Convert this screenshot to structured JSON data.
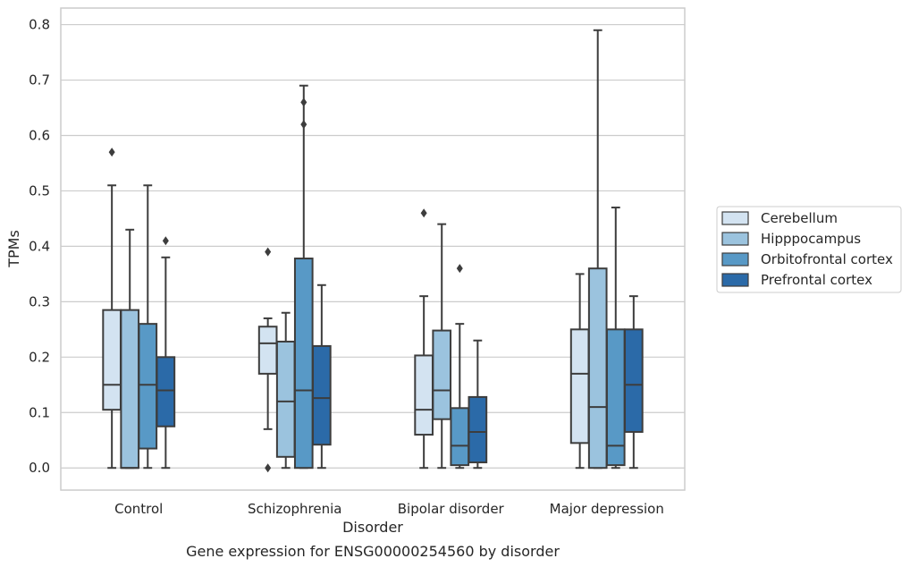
{
  "chart_data": {
    "type": "box",
    "title": "",
    "caption": "Gene expression for ENSG00000254560 by disorder",
    "xlabel": "Disorder",
    "ylabel": "TPMs",
    "ylim": [
      -0.04,
      0.83
    ],
    "yticks": [
      0.0,
      0.1,
      0.2,
      0.3,
      0.4,
      0.5,
      0.6,
      0.7,
      0.8
    ],
    "ytick_labels": [
      "0.0",
      "0.1",
      "0.2",
      "0.3",
      "0.4",
      "0.5",
      "0.6",
      "0.7",
      "0.8"
    ],
    "grid": true,
    "legend_position": "right",
    "categories": [
      "Control",
      "Schizophrenia",
      "Bipolar disorder",
      "Major depression"
    ],
    "series": [
      {
        "name": "Cerebellum",
        "color": "#d3e3f1",
        "boxes": [
          {
            "whislo": 0.0,
            "q1": 0.105,
            "median": 0.15,
            "q3": 0.285,
            "whishi": 0.51,
            "fliers": [
              0.57
            ]
          },
          {
            "whislo": 0.07,
            "q1": 0.17,
            "median": 0.225,
            "q3": 0.255,
            "whishi": 0.27,
            "fliers": [
              0.0,
              0.39
            ]
          },
          {
            "whislo": 0.0,
            "q1": 0.06,
            "median": 0.105,
            "q3": 0.203,
            "whishi": 0.31,
            "fliers": [
              0.46
            ]
          },
          {
            "whislo": 0.0,
            "q1": 0.045,
            "median": 0.17,
            "q3": 0.25,
            "whishi": 0.35,
            "fliers": []
          }
        ]
      },
      {
        "name": "Hipppocampus",
        "color": "#9bc3de",
        "boxes": [
          {
            "whislo": 0.0,
            "q1": 0.0,
            "median": 0.0,
            "q3": 0.285,
            "whishi": 0.43,
            "fliers": []
          },
          {
            "whislo": 0.0,
            "q1": 0.02,
            "median": 0.12,
            "q3": 0.228,
            "whishi": 0.28,
            "fliers": []
          },
          {
            "whislo": 0.0,
            "q1": 0.088,
            "median": 0.14,
            "q3": 0.248,
            "whishi": 0.44,
            "fliers": []
          },
          {
            "whislo": 0.0,
            "q1": 0.0,
            "median": 0.11,
            "q3": 0.36,
            "whishi": 0.79,
            "fliers": []
          }
        ]
      },
      {
        "name": "Orbitofrontal cortex",
        "color": "#5899c6",
        "boxes": [
          {
            "whislo": 0.0,
            "q1": 0.035,
            "median": 0.15,
            "q3": 0.26,
            "whishi": 0.51,
            "fliers": []
          },
          {
            "whislo": 0.0,
            "q1": 0.0,
            "median": 0.14,
            "q3": 0.378,
            "whishi": 0.69,
            "fliers": [
              0.62,
              0.66
            ]
          },
          {
            "whislo": 0.0,
            "q1": 0.005,
            "median": 0.04,
            "q3": 0.108,
            "whishi": 0.26,
            "fliers": [
              0.36
            ]
          },
          {
            "whislo": 0.0,
            "q1": 0.005,
            "median": 0.04,
            "q3": 0.25,
            "whishi": 0.47,
            "fliers": []
          }
        ]
      },
      {
        "name": "Prefrontal cortex",
        "color": "#2b6aa8",
        "boxes": [
          {
            "whislo": 0.0,
            "q1": 0.075,
            "median": 0.14,
            "q3": 0.2,
            "whishi": 0.38,
            "fliers": [
              0.41
            ]
          },
          {
            "whislo": 0.0,
            "q1": 0.042,
            "median": 0.126,
            "q3": 0.22,
            "whishi": 0.33,
            "fliers": []
          },
          {
            "whislo": 0.0,
            "q1": 0.01,
            "median": 0.065,
            "q3": 0.128,
            "whishi": 0.23,
            "fliers": []
          },
          {
            "whislo": 0.0,
            "q1": 0.065,
            "median": 0.15,
            "q3": 0.25,
            "whishi": 0.31,
            "fliers": []
          }
        ]
      }
    ]
  }
}
